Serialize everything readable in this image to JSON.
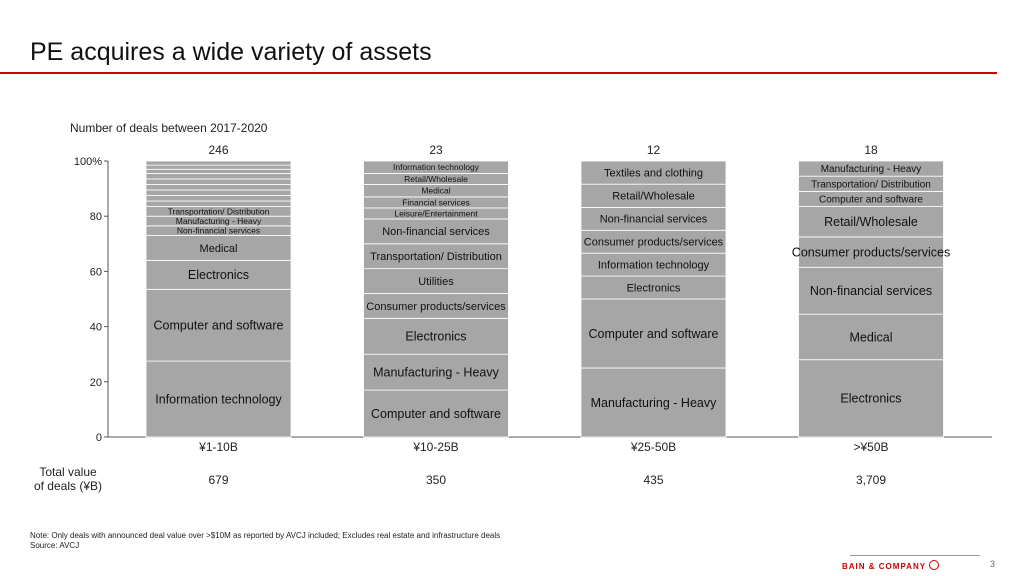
{
  "title": "PE acquires a wide variety of assets",
  "note": "Note:  Only deals with announced deal value over >$10M as reported by AVCJ included; Excludes real estate and infrastructure deals",
  "source": "Source: AVCJ",
  "footer": {
    "logo_text": "BAIN & COMPANY",
    "page_number": "3"
  },
  "colors": {
    "accent": "#cc0000",
    "bar_fill": "#a6a6a6",
    "segment_divider": "#ffffff"
  },
  "chart_data": {
    "type": "bar",
    "stacked": true,
    "subtitle": "Number of deals between 2017-2020",
    "ylim": [
      0,
      100
    ],
    "y_ticks": [
      "0",
      "20",
      "40",
      "60",
      "80",
      "100%"
    ],
    "total_value_label": "Total value of deals (¥B)",
    "bars": [
      {
        "category": "¥1-10B",
        "deal_count": "246",
        "total_value": "679",
        "segments": [
          {
            "label": "Information technology",
            "value": 27.5
          },
          {
            "label": "Computer and software",
            "value": 26
          },
          {
            "label": "Electronics",
            "value": 10.5
          },
          {
            "label": "Medical",
            "value": 9
          },
          {
            "label": "Non-financial services",
            "value": 3.5
          },
          {
            "label": "Manufacturing - Heavy",
            "value": 3.5
          },
          {
            "label": "Transportation/ Distribution",
            "value": 3.5
          },
          {
            "label": "",
            "value": 2
          },
          {
            "label": "",
            "value": 2
          },
          {
            "label": "",
            "value": 2
          },
          {
            "label": "",
            "value": 2
          },
          {
            "label": "",
            "value": 2
          },
          {
            "label": "",
            "value": 2
          },
          {
            "label": "",
            "value": 1.5
          },
          {
            "label": "",
            "value": 1.5
          },
          {
            "label": "",
            "value": 1.5
          }
        ]
      },
      {
        "category": "¥10-25B",
        "deal_count": "23",
        "total_value": "350",
        "segments": [
          {
            "label": "Computer and software",
            "value": 17
          },
          {
            "label": "Manufacturing - Heavy",
            "value": 13
          },
          {
            "label": "Electronics",
            "value": 13
          },
          {
            "label": "Consumer products/services",
            "value": 9
          },
          {
            "label": "Utilities",
            "value": 9
          },
          {
            "label": "Transportation/ Distribution",
            "value": 9
          },
          {
            "label": "Non-financial services",
            "value": 9
          },
          {
            "label": "Leisure/Entertainment",
            "value": 4
          },
          {
            "label": "Financial services",
            "value": 4
          },
          {
            "label": "Medical",
            "value": 4.5
          },
          {
            "label": "Retail/Wholesale",
            "value": 4
          },
          {
            "label": "Information technology",
            "value": 4.5
          }
        ]
      },
      {
        "category": "¥25-50B",
        "deal_count": "12",
        "total_value": "435",
        "segments": [
          {
            "label": "Manufacturing - Heavy",
            "value": 25
          },
          {
            "label": "Computer and software",
            "value": 25
          },
          {
            "label": "Electronics",
            "value": 8.3
          },
          {
            "label": "Information technology",
            "value": 8.3
          },
          {
            "label": "Consumer products/services",
            "value": 8.3
          },
          {
            "label": "Non-financial services",
            "value": 8.3
          },
          {
            "label": "Retail/Wholesale",
            "value": 8.4
          },
          {
            "label": "Textiles and clothing",
            "value": 8.4
          }
        ]
      },
      {
        "category": ">¥50B",
        "deal_count": "18",
        "total_value": "3,709",
        "segments": [
          {
            "label": "Electronics",
            "value": 28
          },
          {
            "label": "Medical",
            "value": 16.5
          },
          {
            "label": "Non-financial services",
            "value": 17
          },
          {
            "label": "Consumer products/services",
            "value": 11
          },
          {
            "label": "Retail/Wholesale",
            "value": 11
          },
          {
            "label": "Computer and software",
            "value": 5.5
          },
          {
            "label": "Transportation/ Distribution",
            "value": 5.5
          },
          {
            "label": "Manufacturing - Heavy",
            "value": 5.5
          }
        ]
      }
    ]
  }
}
